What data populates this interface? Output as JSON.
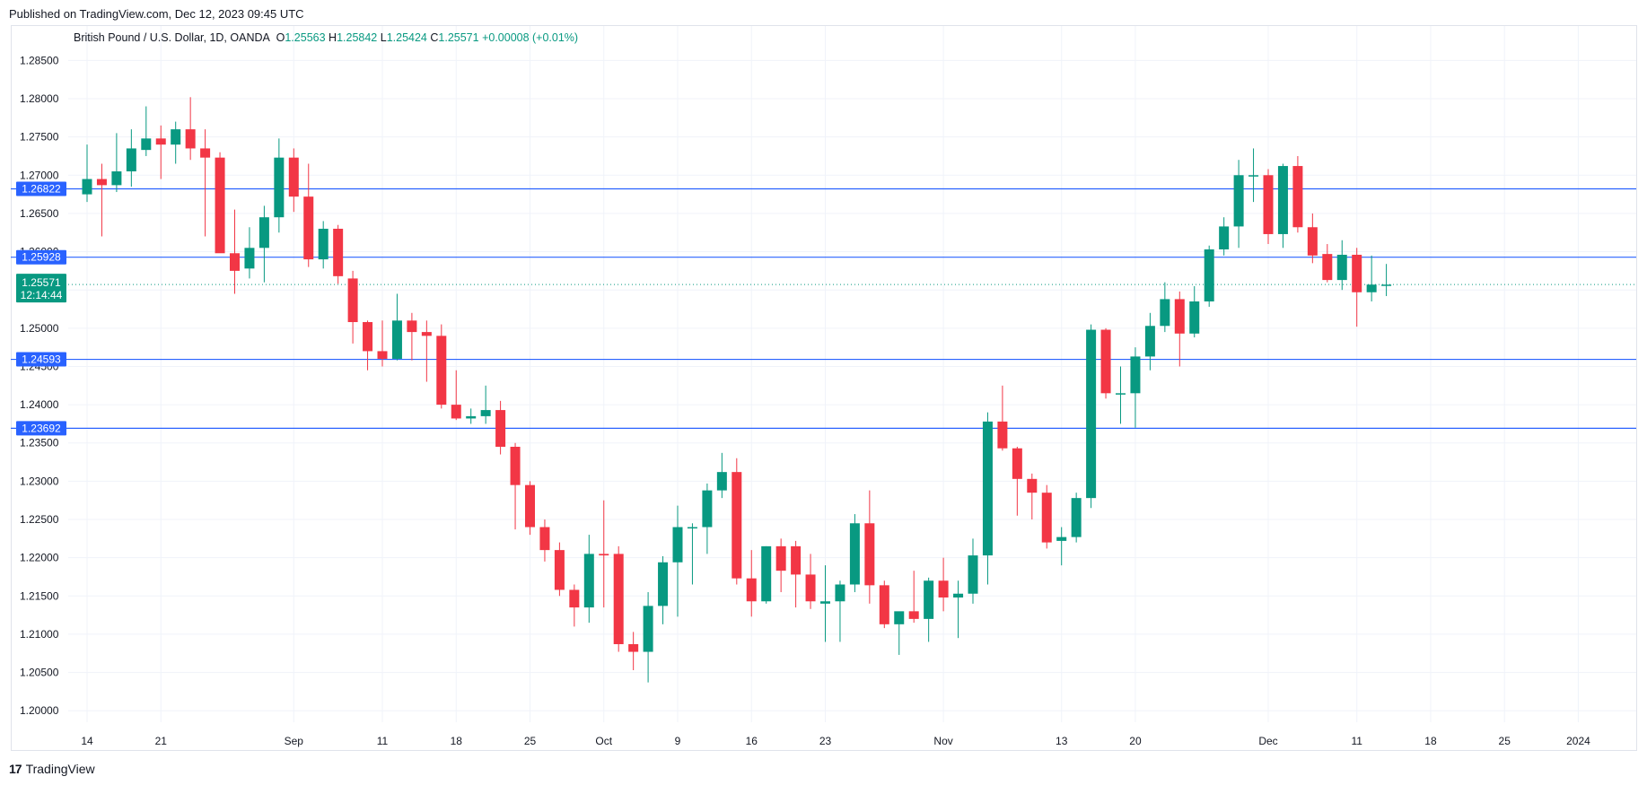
{
  "header": {
    "published": "Published on TradingView.com, Dec 12, 2023 09:45 UTC"
  },
  "legend": {
    "symbol": "British Pound / U.S. Dollar, 1D, OANDA",
    "open_label": "O",
    "open": "1.25563",
    "high_label": "H",
    "high": "1.25842",
    "low_label": "L",
    "low": "1.25424",
    "close_label": "C",
    "close": "1.25571",
    "change": "+0.00008 (+0.01%)"
  },
  "price_tag": {
    "price": "1.25571",
    "countdown": "12:14:44"
  },
  "footer": {
    "brand": "TradingView"
  },
  "colors": {
    "up": "#089981",
    "down": "#f23645",
    "level_line": "#2962ff",
    "grid": "#f0f3fa"
  },
  "chart_data": {
    "type": "candlestick",
    "x_tick_labels": [
      {
        "label": "14",
        "index": 0
      },
      {
        "label": "21",
        "index": 5
      },
      {
        "label": "Sep",
        "index": 14
      },
      {
        "label": "11",
        "index": 20
      },
      {
        "label": "18",
        "index": 25
      },
      {
        "label": "25",
        "index": 30
      },
      {
        "label": "Oct",
        "index": 35
      },
      {
        "label": "9",
        "index": 40
      },
      {
        "label": "16",
        "index": 45
      },
      {
        "label": "23",
        "index": 50
      },
      {
        "label": "Nov",
        "index": 58
      },
      {
        "label": "13",
        "index": 66
      },
      {
        "label": "20",
        "index": 71
      },
      {
        "label": "Dec",
        "index": 80
      },
      {
        "label": "11",
        "index": 86
      },
      {
        "label": "18",
        "index": 91
      },
      {
        "label": "25",
        "index": 96
      },
      {
        "label": "2024",
        "index": 101
      }
    ],
    "y_ticks": [
      "1.20000",
      "1.20500",
      "1.21000",
      "1.21500",
      "1.22000",
      "1.22500",
      "1.23000",
      "1.23500",
      "1.24000",
      "1.24500",
      "1.25000",
      "1.25500",
      "1.26000",
      "1.26500",
      "1.27000",
      "1.27500",
      "1.28000",
      "1.28500"
    ],
    "ylim": [
      1.1985,
      1.2895
    ],
    "horizontal_levels": [
      {
        "price": 1.26822,
        "label": "1.26822"
      },
      {
        "price": 1.25928,
        "label": "1.25928"
      },
      {
        "price": 1.24593,
        "label": "1.24593"
      },
      {
        "price": 1.23692,
        "label": "1.23692"
      }
    ],
    "last_price": 1.25571,
    "grid": true,
    "candles": [
      {
        "o": 1.2675,
        "h": 1.274,
        "l": 1.2665,
        "c": 1.2695
      },
      {
        "o": 1.2695,
        "h": 1.2715,
        "l": 1.262,
        "c": 1.2687
      },
      {
        "o": 1.2687,
        "h": 1.2755,
        "l": 1.2678,
        "c": 1.2705
      },
      {
        "o": 1.2705,
        "h": 1.276,
        "l": 1.2685,
        "c": 1.2735
      },
      {
        "o": 1.2733,
        "h": 1.279,
        "l": 1.2725,
        "c": 1.2748
      },
      {
        "o": 1.2748,
        "h": 1.2765,
        "l": 1.2695,
        "c": 1.274
      },
      {
        "o": 1.274,
        "h": 1.277,
        "l": 1.2715,
        "c": 1.276
      },
      {
        "o": 1.276,
        "h": 1.2802,
        "l": 1.272,
        "c": 1.2735
      },
      {
        "o": 1.2735,
        "h": 1.276,
        "l": 1.262,
        "c": 1.2723
      },
      {
        "o": 1.2723,
        "h": 1.273,
        "l": 1.26,
        "c": 1.2598
      },
      {
        "o": 1.2598,
        "h": 1.2655,
        "l": 1.2545,
        "c": 1.2575
      },
      {
        "o": 1.2578,
        "h": 1.2632,
        "l": 1.2565,
        "c": 1.2605
      },
      {
        "o": 1.2605,
        "h": 1.266,
        "l": 1.256,
        "c": 1.2645
      },
      {
        "o": 1.2645,
        "h": 1.2748,
        "l": 1.2625,
        "c": 1.2723
      },
      {
        "o": 1.2723,
        "h": 1.2735,
        "l": 1.2652,
        "c": 1.2672
      },
      {
        "o": 1.2672,
        "h": 1.2715,
        "l": 1.258,
        "c": 1.259
      },
      {
        "o": 1.259,
        "h": 1.264,
        "l": 1.2578,
        "c": 1.263
      },
      {
        "o": 1.263,
        "h": 1.2635,
        "l": 1.2558,
        "c": 1.2568
      },
      {
        "o": 1.2565,
        "h": 1.2575,
        "l": 1.248,
        "c": 1.2508
      },
      {
        "o": 1.2508,
        "h": 1.251,
        "l": 1.2445,
        "c": 1.247
      },
      {
        "o": 1.247,
        "h": 1.251,
        "l": 1.245,
        "c": 1.246
      },
      {
        "o": 1.246,
        "h": 1.2545,
        "l": 1.2458,
        "c": 1.251
      },
      {
        "o": 1.251,
        "h": 1.252,
        "l": 1.2458,
        "c": 1.2495
      },
      {
        "o": 1.2495,
        "h": 1.251,
        "l": 1.243,
        "c": 1.249
      },
      {
        "o": 1.249,
        "h": 1.2505,
        "l": 1.2395,
        "c": 1.24
      },
      {
        "o": 1.24,
        "h": 1.2445,
        "l": 1.238,
        "c": 1.2382
      },
      {
        "o": 1.2382,
        "h": 1.2395,
        "l": 1.2375,
        "c": 1.2385
      },
      {
        "o": 1.2385,
        "h": 1.2425,
        "l": 1.2375,
        "c": 1.2393
      },
      {
        "o": 1.2393,
        "h": 1.2405,
        "l": 1.2335,
        "c": 1.2345
      },
      {
        "o": 1.2345,
        "h": 1.235,
        "l": 1.2237,
        "c": 1.2295
      },
      {
        "o": 1.2295,
        "h": 1.23,
        "l": 1.223,
        "c": 1.224
      },
      {
        "o": 1.224,
        "h": 1.225,
        "l": 1.2195,
        "c": 1.221
      },
      {
        "o": 1.221,
        "h": 1.222,
        "l": 1.215,
        "c": 1.2158
      },
      {
        "o": 1.2158,
        "h": 1.2165,
        "l": 1.211,
        "c": 1.2135
      },
      {
        "o": 1.2135,
        "h": 1.223,
        "l": 1.2115,
        "c": 1.2205
      },
      {
        "o": 1.2205,
        "h": 1.2275,
        "l": 1.2135,
        "c": 1.2203
      },
      {
        "o": 1.2205,
        "h": 1.2215,
        "l": 1.2077,
        "c": 1.2087
      },
      {
        "o": 1.2087,
        "h": 1.2103,
        "l": 1.2053,
        "c": 1.2077
      },
      {
        "o": 1.2077,
        "h": 1.2155,
        "l": 1.2037,
        "c": 1.2137
      },
      {
        "o": 1.2137,
        "h": 1.2202,
        "l": 1.2113,
        "c": 1.2194
      },
      {
        "o": 1.2194,
        "h": 1.2268,
        "l": 1.2123,
        "c": 1.224
      },
      {
        "o": 1.224,
        "h": 1.2245,
        "l": 1.2165,
        "c": 1.224
      },
      {
        "o": 1.224,
        "h": 1.2297,
        "l": 1.2205,
        "c": 1.2288
      },
      {
        "o": 1.2288,
        "h": 1.2337,
        "l": 1.2278,
        "c": 1.2312
      },
      {
        "o": 1.2312,
        "h": 1.233,
        "l": 1.2165,
        "c": 1.2173
      },
      {
        "o": 1.2173,
        "h": 1.221,
        "l": 1.2123,
        "c": 1.2143
      },
      {
        "o": 1.2143,
        "h": 1.2215,
        "l": 1.214,
        "c": 1.2215
      },
      {
        "o": 1.2215,
        "h": 1.2225,
        "l": 1.2155,
        "c": 1.2183
      },
      {
        "o": 1.2215,
        "h": 1.2222,
        "l": 1.2135,
        "c": 1.2178
      },
      {
        "o": 1.2178,
        "h": 1.2205,
        "l": 1.2133,
        "c": 1.2143
      },
      {
        "o": 1.214,
        "h": 1.219,
        "l": 1.209,
        "c": 1.2143
      },
      {
        "o": 1.2143,
        "h": 1.217,
        "l": 1.209,
        "c": 1.2165
      },
      {
        "o": 1.2165,
        "h": 1.2257,
        "l": 1.2155,
        "c": 1.2245
      },
      {
        "o": 1.2245,
        "h": 1.2288,
        "l": 1.214,
        "c": 1.2164
      },
      {
        "o": 1.2164,
        "h": 1.217,
        "l": 1.2108,
        "c": 1.2113
      },
      {
        "o": 1.2113,
        "h": 1.2128,
        "l": 1.2073,
        "c": 1.213
      },
      {
        "o": 1.213,
        "h": 1.2183,
        "l": 1.2115,
        "c": 1.212
      },
      {
        "o": 1.212,
        "h": 1.2174,
        "l": 1.209,
        "c": 1.217
      },
      {
        "o": 1.217,
        "h": 1.22,
        "l": 1.213,
        "c": 1.2148
      },
      {
        "o": 1.2148,
        "h": 1.217,
        "l": 1.2095,
        "c": 1.2153
      },
      {
        "o": 1.2153,
        "h": 1.2225,
        "l": 1.214,
        "c": 1.2203
      },
      {
        "o": 1.2203,
        "h": 1.239,
        "l": 1.2165,
        "c": 1.2378
      },
      {
        "o": 1.2378,
        "h": 1.2425,
        "l": 1.234,
        "c": 1.2343
      },
      {
        "o": 1.2343,
        "h": 1.2345,
        "l": 1.2255,
        "c": 1.2303
      },
      {
        "o": 1.2303,
        "h": 1.231,
        "l": 1.225,
        "c": 1.2285
      },
      {
        "o": 1.2285,
        "h": 1.2295,
        "l": 1.2212,
        "c": 1.222
      },
      {
        "o": 1.2222,
        "h": 1.224,
        "l": 1.219,
        "c": 1.2227
      },
      {
        "o": 1.2227,
        "h": 1.2285,
        "l": 1.222,
        "c": 1.2278
      },
      {
        "o": 1.2278,
        "h": 1.2505,
        "l": 1.2265,
        "c": 1.2498
      },
      {
        "o": 1.2498,
        "h": 1.25,
        "l": 1.2408,
        "c": 1.2415
      },
      {
        "o": 1.2415,
        "h": 1.245,
        "l": 1.2375,
        "c": 1.2415
      },
      {
        "o": 1.2415,
        "h": 1.2475,
        "l": 1.237,
        "c": 1.2463
      },
      {
        "o": 1.2463,
        "h": 1.252,
        "l": 1.2445,
        "c": 1.2503
      },
      {
        "o": 1.2503,
        "h": 1.256,
        "l": 1.2495,
        "c": 1.2538
      },
      {
        "o": 1.2538,
        "h": 1.2548,
        "l": 1.245,
        "c": 1.2493
      },
      {
        "o": 1.2493,
        "h": 1.2555,
        "l": 1.2488,
        "c": 1.2535
      },
      {
        "o": 1.2535,
        "h": 1.2608,
        "l": 1.2528,
        "c": 1.2603
      },
      {
        "o": 1.2603,
        "h": 1.2645,
        "l": 1.2595,
        "c": 1.2633
      },
      {
        "o": 1.2633,
        "h": 1.272,
        "l": 1.2605,
        "c": 1.27
      },
      {
        "o": 1.27,
        "h": 1.2735,
        "l": 1.2665,
        "c": 1.27
      },
      {
        "o": 1.27,
        "h": 1.2708,
        "l": 1.261,
        "c": 1.2623
      },
      {
        "o": 1.2623,
        "h": 1.2715,
        "l": 1.2605,
        "c": 1.2712
      },
      {
        "o": 1.2712,
        "h": 1.2725,
        "l": 1.2625,
        "c": 1.2632
      },
      {
        "o": 1.2632,
        "h": 1.265,
        "l": 1.2585,
        "c": 1.2595
      },
      {
        "o": 1.2597,
        "h": 1.261,
        "l": 1.256,
        "c": 1.2563
      },
      {
        "o": 1.2563,
        "h": 1.2615,
        "l": 1.255,
        "c": 1.2596
      },
      {
        "o": 1.2596,
        "h": 1.2605,
        "l": 1.2502,
        "c": 1.2547
      },
      {
        "o": 1.2547,
        "h": 1.2595,
        "l": 1.2535,
        "c": 1.2557
      },
      {
        "o": 1.2556,
        "h": 1.2584,
        "l": 1.2542,
        "c": 1.2557
      }
    ]
  }
}
